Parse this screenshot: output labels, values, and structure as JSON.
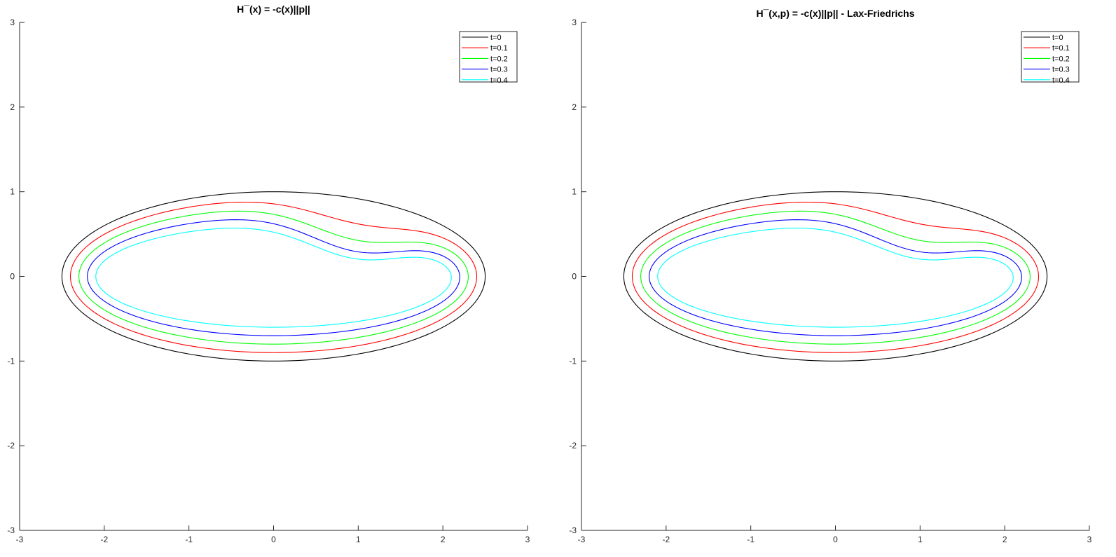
{
  "chart_data": [
    {
      "type": "line",
      "title": "H¯(x) = -c(x)||p||",
      "xlim": [
        -3,
        3
      ],
      "ylim": [
        -3,
        3
      ],
      "xticks": [
        "-3",
        "-2",
        "-1",
        "0",
        "1",
        "2",
        "3"
      ],
      "yticks": [
        "-3",
        "-2",
        "-1",
        "0",
        "1",
        "2",
        "3"
      ],
      "grid": false,
      "legend_position": "top-right",
      "series": [
        {
          "name": "t=0",
          "color": "#000000",
          "params": {
            "a": 2.5,
            "b": 1.0,
            "dent": 0.0
          }
        },
        {
          "name": "t=0.1",
          "color": "#ff0000",
          "params": {
            "a": 2.4,
            "b": 0.9,
            "dent": 0.2
          }
        },
        {
          "name": "t=0.2",
          "color": "#00ff00",
          "params": {
            "a": 2.3,
            "b": 0.8,
            "dent": 0.31
          }
        },
        {
          "name": "t=0.3",
          "color": "#0000ff",
          "params": {
            "a": 2.2,
            "b": 0.7,
            "dent": 0.38
          }
        },
        {
          "name": "t=0.4",
          "color": "#00ffff",
          "params": {
            "a": 2.1,
            "b": 0.6,
            "dent": 0.42
          }
        }
      ]
    },
    {
      "type": "line",
      "title": "H¯(x,p) = -c(x)||p|| - Lax-Friedrichs",
      "xlim": [
        -3,
        3
      ],
      "ylim": [
        -3,
        3
      ],
      "xticks": [
        "-3",
        "-2",
        "-1",
        "0",
        "1",
        "2",
        "3"
      ],
      "yticks": [
        "-3",
        "-2",
        "-1",
        "0",
        "1",
        "2",
        "3"
      ],
      "grid": false,
      "legend_position": "top-right",
      "series": [
        {
          "name": "t=0",
          "color": "#000000",
          "params": {
            "a": 2.5,
            "b": 1.0,
            "dent": 0.0
          }
        },
        {
          "name": "t=0.1",
          "color": "#ff0000",
          "params": {
            "a": 2.4,
            "b": 0.9,
            "dent": 0.2
          }
        },
        {
          "name": "t=0.2",
          "color": "#00ff00",
          "params": {
            "a": 2.3,
            "b": 0.8,
            "dent": 0.31
          }
        },
        {
          "name": "t=0.3",
          "color": "#0000ff",
          "params": {
            "a": 2.2,
            "b": 0.7,
            "dent": 0.38
          }
        },
        {
          "name": "t=0.4",
          "color": "#00ffff",
          "params": {
            "a": 2.1,
            "b": 0.6,
            "dent": 0.42
          }
        }
      ]
    }
  ]
}
